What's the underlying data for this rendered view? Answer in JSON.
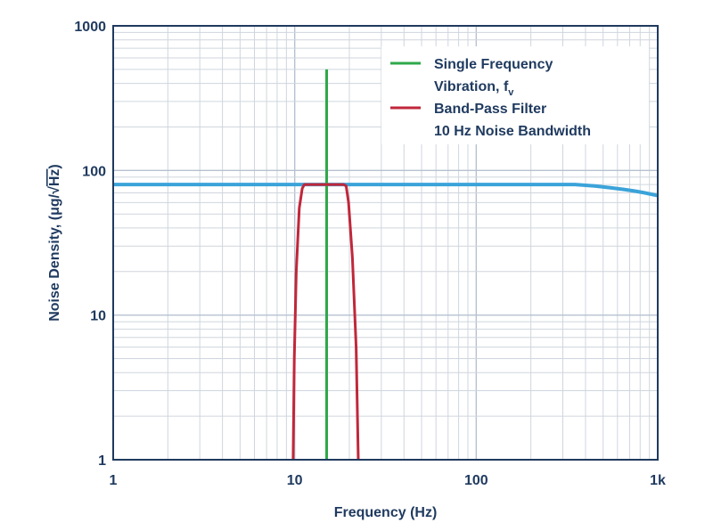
{
  "chart_data": {
    "type": "line",
    "xscale": "log",
    "yscale": "log",
    "xlim": [
      1,
      1000
    ],
    "ylim": [
      1,
      1000
    ],
    "grid": true,
    "legend_position": "top-right",
    "xlabel": "Frequency (Hz)",
    "ylabel_prefix": "Noise Density, (μg/",
    "ylabel_radicand": "Hz",
    "ylabel_suffix": ")",
    "x_ticks": [
      {
        "value": 1,
        "label": "1"
      },
      {
        "value": 10,
        "label": "10"
      },
      {
        "value": 100,
        "label": "100"
      },
      {
        "value": 1000,
        "label": "1k"
      }
    ],
    "y_ticks": [
      {
        "value": 1,
        "label": "1"
      },
      {
        "value": 10,
        "label": "10"
      },
      {
        "value": 100,
        "label": "100"
      },
      {
        "value": 1000,
        "label": "1000"
      }
    ],
    "series": [
      {
        "key": "noise",
        "color": "#3ba3d9",
        "x": [
          1,
          10,
          100,
          350,
          450,
          550,
          650,
          750,
          850,
          1000
        ],
        "y": [
          80,
          80,
          80,
          80,
          78,
          76,
          74,
          72,
          70,
          67
        ]
      },
      {
        "key": "single",
        "name_line1": "Single Frequency",
        "name_line2": "Vibration, f",
        "name_line2_sub": "v",
        "color": "#2fa84a",
        "x": [
          15,
          15
        ],
        "y": [
          1,
          500
        ]
      },
      {
        "key": "bandpass",
        "name_line1": "Band-Pass Filter",
        "name_line2": "10 Hz Noise Bandwidth",
        "color": "#c0273a",
        "x": [
          9.8,
          9.95,
          10.2,
          10.6,
          11.0,
          11.3,
          18.6,
          19.2,
          19.8,
          20.8,
          21.8,
          22.4
        ],
        "y": [
          1,
          5,
          20,
          55,
          75,
          80,
          80,
          78,
          60,
          25,
          6,
          1
        ]
      }
    ]
  }
}
